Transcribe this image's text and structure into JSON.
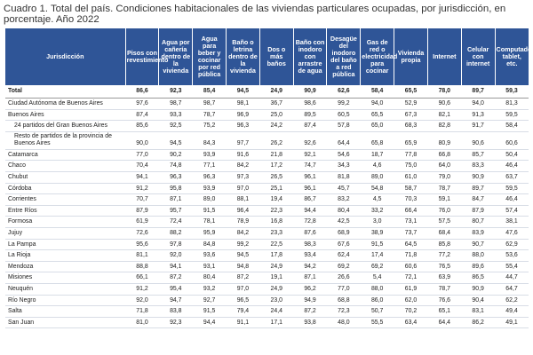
{
  "title": "Cuadro 1. Total del país. Condiciones habitacionales de las viviendas particulares ocupadas, por jurisdicción, en porcentaje. Año 2022",
  "headers": [
    "Jurisdicción",
    "Pisos con revestimiento",
    "Agua por cañería dentro de la vivienda",
    "Agua para beber y cocinar por red pública",
    "Baño o letrina dentro de la vivienda",
    "Dos o más baños",
    "Baño con inodoro con arrastre de agua",
    "Desagüe del inodoro del baño a red pública",
    "Gas de red o electricidad para cocinar",
    "Vivienda propia",
    "Internet",
    "Celular con internet",
    "Computadora, tablet, etc."
  ],
  "rows": [
    {
      "name": "Total",
      "type": "total",
      "v": [
        "86,6",
        "92,3",
        "85,4",
        "94,5",
        "24,9",
        "90,9",
        "62,6",
        "58,4",
        "65,5",
        "78,0",
        "89,7",
        "59,3"
      ]
    },
    {
      "name": "Ciudad Autónoma de Buenos Aires",
      "type": "",
      "v": [
        "97,6",
        "98,7",
        "98,7",
        "98,1",
        "36,7",
        "98,6",
        "99,2",
        "94,0",
        "52,9",
        "90,6",
        "94,0",
        "81,3"
      ]
    },
    {
      "name": "Buenos Aires",
      "type": "",
      "v": [
        "87,4",
        "93,3",
        "78,7",
        "96,9",
        "25,0",
        "89,5",
        "60,5",
        "65,5",
        "67,3",
        "82,1",
        "91,3",
        "59,5"
      ]
    },
    {
      "name": "24 partidos del Gran Buenos Aires",
      "type": "sub",
      "v": [
        "85,6",
        "92,5",
        "75,2",
        "96,3",
        "24,2",
        "87,4",
        "57,8",
        "65,0",
        "68,3",
        "82,8",
        "91,7",
        "58,4"
      ]
    },
    {
      "name": "Resto de partidos de la provincia de Buenos Aires",
      "type": "sub wrap",
      "v": [
        "90,0",
        "94,5",
        "84,3",
        "97,7",
        "26,2",
        "92,6",
        "64,4",
        "65,8",
        "65,9",
        "80,9",
        "90,6",
        "60,6"
      ]
    },
    {
      "name": "Catamarca",
      "type": "",
      "v": [
        "77,0",
        "90,2",
        "93,9",
        "91,6",
        "21,8",
        "92,1",
        "54,6",
        "18,7",
        "77,8",
        "66,8",
        "85,7",
        "50,4"
      ]
    },
    {
      "name": "Chaco",
      "type": "",
      "v": [
        "70,4",
        "74,8",
        "77,1",
        "84,2",
        "17,2",
        "74,7",
        "34,3",
        "4,6",
        "75,0",
        "64,0",
        "83,3",
        "46,4"
      ]
    },
    {
      "name": "Chubut",
      "type": "",
      "v": [
        "94,1",
        "96,3",
        "96,3",
        "97,3",
        "26,5",
        "96,1",
        "81,8",
        "89,0",
        "61,0",
        "79,0",
        "90,9",
        "63,7"
      ]
    },
    {
      "name": "Córdoba",
      "type": "",
      "v": [
        "91,2",
        "95,8",
        "93,9",
        "97,0",
        "25,1",
        "96,1",
        "45,7",
        "54,8",
        "58,7",
        "78,7",
        "89,7",
        "59,5"
      ]
    },
    {
      "name": "Corrientes",
      "type": "",
      "v": [
        "70,7",
        "87,1",
        "89,0",
        "88,1",
        "19,4",
        "86,7",
        "83,2",
        "4,5",
        "70,3",
        "59,1",
        "84,7",
        "46,4"
      ]
    },
    {
      "name": "Entre Ríos",
      "type": "",
      "v": [
        "87,9",
        "95,7",
        "91,5",
        "96,4",
        "22,3",
        "94,4",
        "80,4",
        "33,2",
        "66,4",
        "76,0",
        "87,9",
        "57,4"
      ]
    },
    {
      "name": "Formosa",
      "type": "",
      "v": [
        "61,9",
        "72,4",
        "78,1",
        "78,9",
        "16,8",
        "72,8",
        "42,5",
        "3,0",
        "73,1",
        "57,5",
        "80,7",
        "38,1"
      ]
    },
    {
      "name": "Jujuy",
      "type": "",
      "v": [
        "72,6",
        "88,2",
        "95,9",
        "84,2",
        "23,3",
        "87,6",
        "68,9",
        "38,9",
        "73,7",
        "68,4",
        "83,9",
        "47,6"
      ]
    },
    {
      "name": "La Pampa",
      "type": "",
      "v": [
        "95,6",
        "97,8",
        "84,8",
        "99,2",
        "22,5",
        "98,3",
        "67,6",
        "91,5",
        "64,5",
        "85,8",
        "90,7",
        "62,9"
      ]
    },
    {
      "name": "La Rioja",
      "type": "",
      "v": [
        "81,1",
        "92,0",
        "93,6",
        "94,5",
        "17,8",
        "93,4",
        "62,4",
        "17,4",
        "71,8",
        "77,2",
        "88,0",
        "53,6"
      ]
    },
    {
      "name": "Mendoza",
      "type": "",
      "v": [
        "88,8",
        "94,1",
        "93,1",
        "94,8",
        "24,9",
        "94,2",
        "69,2",
        "69,2",
        "60,6",
        "76,5",
        "89,6",
        "55,4"
      ]
    },
    {
      "name": "Misiones",
      "type": "",
      "v": [
        "66,1",
        "87,2",
        "80,4",
        "87,2",
        "19,1",
        "87,1",
        "26,6",
        "5,4",
        "72,1",
        "63,9",
        "86,5",
        "44,7"
      ]
    },
    {
      "name": "Neuquén",
      "type": "",
      "v": [
        "91,2",
        "95,4",
        "93,2",
        "97,0",
        "24,9",
        "96,2",
        "77,0",
        "88,0",
        "61,9",
        "78,7",
        "90,9",
        "64,7"
      ]
    },
    {
      "name": "Río Negro",
      "type": "",
      "v": [
        "92,0",
        "94,7",
        "92,7",
        "96,5",
        "23,0",
        "94,9",
        "68,8",
        "86,0",
        "62,0",
        "76,6",
        "90,4",
        "62,2"
      ]
    },
    {
      "name": "Salta",
      "type": "",
      "v": [
        "71,8",
        "83,8",
        "91,5",
        "79,4",
        "24,4",
        "87,2",
        "72,3",
        "50,7",
        "70,2",
        "65,1",
        "83,1",
        "49,4"
      ]
    },
    {
      "name": "San Juan",
      "type": "",
      "v": [
        "81,0",
        "92,3",
        "94,4",
        "91,1",
        "17,1",
        "93,8",
        "48,0",
        "55,5",
        "63,4",
        "64,4",
        "86,2",
        "49,1"
      ]
    }
  ]
}
